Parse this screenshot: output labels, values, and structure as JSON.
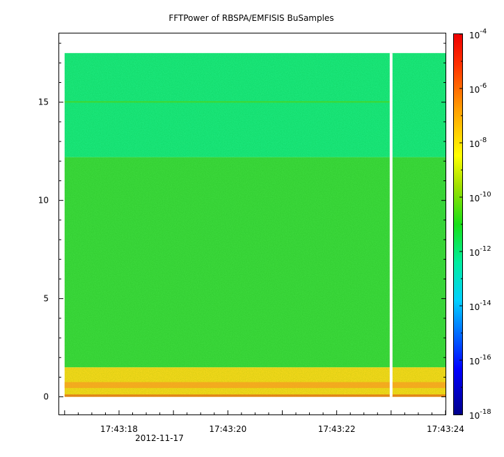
{
  "chart_data": {
    "type": "heatmap",
    "title": "FFTPower of RBSPA/EMFISIS  BuSamples",
    "xlabel": "",
    "ylabel": "",
    "x_tick_labels": [
      "17:43:18",
      "17:43:20",
      "17:43:22",
      "17:43:24"
    ],
    "x_date_label": "2012-11-17",
    "x_range": [
      "17:43:16.9",
      "17:43:24.0"
    ],
    "data_x_range": [
      "17:43:17.0",
      "17:43:24.0"
    ],
    "y_ticks": [
      0,
      5,
      10,
      15
    ],
    "y_range": [
      -0.9,
      18.5
    ],
    "data_y_range": [
      0,
      17.5
    ],
    "gap_x": "17:43:23.0",
    "colorbar": {
      "scale": "log",
      "range": [
        1e-18,
        0.0001
      ],
      "tick_bases": [
        "10",
        "10",
        "10",
        "10",
        "10",
        "10",
        "10",
        "10"
      ],
      "tick_exponents": [
        "-4",
        "-6",
        "-8",
        "-10",
        "-12",
        "-14",
        "-16",
        "-18"
      ],
      "tick_values": [
        0.0001,
        1e-06,
        1e-08,
        1e-10,
        1e-12,
        1e-14,
        1e-16,
        1e-18
      ]
    },
    "bands": [
      {
        "y_from": 12.2,
        "y_to": 17.5,
        "power": 3e-12,
        "color": "#1ae67a"
      },
      {
        "y_from": 1.5,
        "y_to": 12.2,
        "power": 1e-10,
        "color": "#3ad83a"
      },
      {
        "y_from": 0.0,
        "y_to": 1.5,
        "power": 3e-08,
        "color": "#f2d81a"
      }
    ]
  }
}
